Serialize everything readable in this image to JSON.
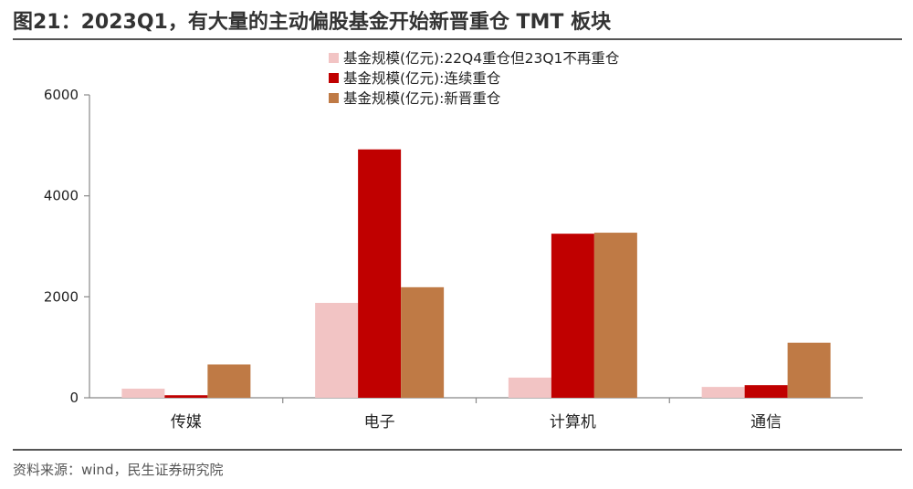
{
  "figure": {
    "title": "图21：2023Q1，有大量的主动偏股基金开始新晋重仓 TMT 板块",
    "source": "资料来源：wind，民生证券研究院"
  },
  "chart_data": {
    "type": "bar",
    "categories": [
      "传媒",
      "电子",
      "计算机",
      "通信"
    ],
    "series": [
      {
        "name": "基金规模(亿元):22Q4重仓但23Q1不再重仓",
        "color": "#f2c4c4",
        "values": [
          180,
          1880,
          400,
          215
        ]
      },
      {
        "name": "基金规模(亿元):连续重仓",
        "color": "#c00000",
        "values": [
          50,
          4920,
          3250,
          250
        ]
      },
      {
        "name": "基金规模(亿元):新晋重仓",
        "color": "#bf7a45",
        "values": [
          660,
          2190,
          3270,
          1090
        ]
      }
    ],
    "yticks": [
      0,
      2000,
      4000,
      6000
    ],
    "ylim": [
      0,
      6000
    ],
    "grid": false,
    "legend": "top-center"
  }
}
